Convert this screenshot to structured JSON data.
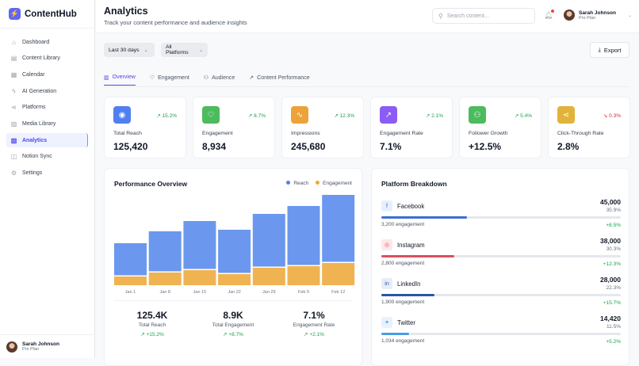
{
  "app": {
    "name": "ContentHub"
  },
  "sidebar": {
    "items": [
      {
        "label": "Dashboard",
        "icon": "home-icon"
      },
      {
        "label": "Content Library",
        "icon": "file-icon"
      },
      {
        "label": "Calendar",
        "icon": "calendar-icon"
      },
      {
        "label": "AI Generation",
        "icon": "sparkle-icon"
      },
      {
        "label": "Platforms",
        "icon": "share-icon"
      },
      {
        "label": "Media Library",
        "icon": "image-icon"
      },
      {
        "label": "Analytics",
        "icon": "bar-chart-icon",
        "active": true
      },
      {
        "label": "Notion Sync",
        "icon": "book-icon"
      },
      {
        "label": "Settings",
        "icon": "gear-icon"
      }
    ],
    "user": {
      "name": "Sarah Johnson",
      "plan": "Pro Plan"
    }
  },
  "header": {
    "title": "Analytics",
    "subtitle": "Track your content performance and audience insights",
    "search_placeholder": "Search content...",
    "user": {
      "name": "Sarah Johnson",
      "plan": "Pro Plan"
    }
  },
  "filters": {
    "date": "Last 30 days",
    "platform": "All Platforms",
    "export_label": "Export"
  },
  "tabs": [
    {
      "label": "Overview",
      "active": true
    },
    {
      "label": "Engagement"
    },
    {
      "label": "Audience"
    },
    {
      "label": "Content Performance"
    }
  ],
  "kpis": [
    {
      "label": "Total Reach",
      "value": "125,420",
      "change": "↗ 15.2%",
      "color": "#4f7ff0",
      "icon": "eye-icon",
      "glyph": "◉",
      "trend": "up"
    },
    {
      "label": "Engagement",
      "value": "8,934",
      "change": "↗ 8.7%",
      "color": "#4cbb5d",
      "icon": "heart-icon",
      "glyph": "♡",
      "trend": "up"
    },
    {
      "label": "Impressions",
      "value": "245,680",
      "change": "↗ 12.3%",
      "color": "#eba33a",
      "icon": "activity-icon",
      "glyph": "∿",
      "trend": "up"
    },
    {
      "label": "Engagement Rate",
      "value": "7.1%",
      "change": "↗ 2.1%",
      "color": "#8b5cf6",
      "icon": "trending-up-icon",
      "glyph": "↗",
      "trend": "up"
    },
    {
      "label": "Follower Growth",
      "value": "+12.5%",
      "change": "↗ 5.4%",
      "color": "#4cbb5d",
      "icon": "users-icon",
      "glyph": "⚇",
      "trend": "up"
    },
    {
      "label": "Click-Through Rate",
      "value": "2.8%",
      "change": "↘ 0.3%",
      "color": "#e2b33a",
      "icon": "share-icon",
      "glyph": "⋖",
      "trend": "down"
    }
  ],
  "performance": {
    "title": "Performance Overview",
    "stats": [
      {
        "value": "125.4K",
        "label": "Total Reach",
        "change": "+15.2%"
      },
      {
        "value": "8.9K",
        "label": "Total Engagement",
        "change": "+8.7%"
      },
      {
        "value": "7.1%",
        "label": "Engagement Rate",
        "change": "+2.1%"
      }
    ]
  },
  "chart_data": {
    "type": "bar",
    "stacked": true,
    "categories": [
      "Jan 1",
      "Jan 8",
      "Jan 15",
      "Jan 22",
      "Jan 29",
      "Feb 5",
      "Feb 12"
    ],
    "series": [
      {
        "name": "Engagement",
        "color": "#f0b352",
        "values": [
          11,
          16,
          19,
          14,
          22,
          24,
          28
        ]
      },
      {
        "name": "Reach",
        "color": "#6b98ee",
        "values": [
          42,
          52,
          62,
          56,
          68,
          76,
          86
        ]
      }
    ],
    "ylim": [
      0,
      120
    ],
    "grid": false,
    "legend": "top-right"
  },
  "platforms": {
    "title": "Platform Breakdown",
    "items": [
      {
        "name": "Facebook",
        "value": "45,000",
        "pct": "35.9%",
        "share": 35.9,
        "engagement": "3,200 engagement",
        "change": "+8.5%",
        "color": "#3b6fd8",
        "bg": "#e8effc",
        "icon": "facebook-icon",
        "glyph": "f"
      },
      {
        "name": "Instagram",
        "value": "38,000",
        "pct": "30.3%",
        "share": 30.3,
        "engagement": "2,800 engagement",
        "change": "+12.3%",
        "color": "#d9505f",
        "bg": "#fce8ea",
        "icon": "instagram-icon",
        "glyph": "◎"
      },
      {
        "name": "LinkedIn",
        "value": "28,000",
        "pct": "22.3%",
        "share": 22.3,
        "engagement": "1,900 engagement",
        "change": "+15.7%",
        "color": "#2856a8",
        "bg": "#e6edf8",
        "icon": "linkedin-icon",
        "glyph": "in"
      },
      {
        "name": "Twitter",
        "value": "14,420",
        "pct": "11.5%",
        "share": 11.5,
        "engagement": "1,034 engagement",
        "change": "+5.2%",
        "color": "#4a9be8",
        "bg": "#e7f2fc",
        "icon": "twitter-icon",
        "glyph": "✦"
      }
    ]
  }
}
